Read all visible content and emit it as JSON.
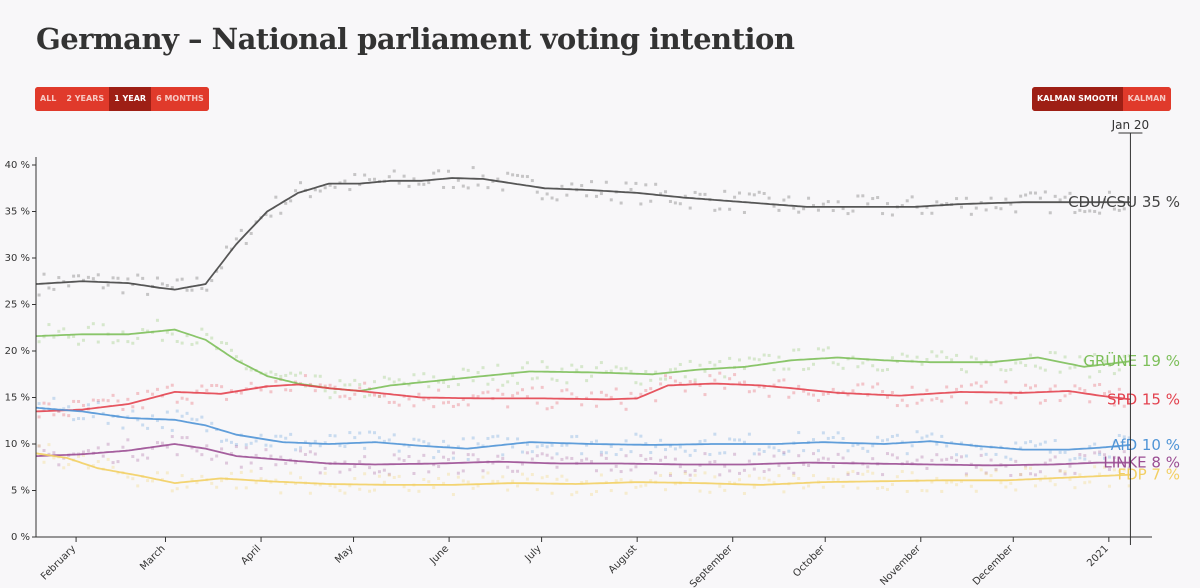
{
  "title": "Germany – National parliament voting intention",
  "range_buttons": [
    {
      "label": "ALL",
      "active": false
    },
    {
      "label": "2 YEARS",
      "active": false
    },
    {
      "label": "1 YEAR",
      "active": true
    },
    {
      "label": "6 MONTHS",
      "active": false
    }
  ],
  "method_buttons": [
    {
      "label": "KALMAN SMOOTH",
      "active": true
    },
    {
      "label": "KALMAN",
      "active": false
    }
  ],
  "chart_data": {
    "type": "line",
    "title": "Germany – National parliament voting intention",
    "xlabel": "",
    "ylabel": "",
    "ylim": [
      0,
      40
    ],
    "x_range_days": [
      0,
      362
    ],
    "yticks": [
      "0 %",
      "5 %",
      "10 %",
      "15 %",
      "20 %",
      "25 %",
      "30 %",
      "35 %",
      "40 %"
    ],
    "ytick_values": [
      0,
      5,
      10,
      15,
      20,
      25,
      30,
      35,
      40
    ],
    "month_ticks": [
      {
        "label": "February",
        "day": 13
      },
      {
        "label": "March",
        "day": 42
      },
      {
        "label": "April",
        "day": 73
      },
      {
        "label": "May",
        "day": 103
      },
      {
        "label": "June",
        "day": 134
      },
      {
        "label": "July",
        "day": 164
      },
      {
        "label": "August",
        "day": 195
      },
      {
        "label": "September",
        "day": 226
      },
      {
        "label": "October",
        "day": 256
      },
      {
        "label": "November",
        "day": 287
      },
      {
        "label": "December",
        "day": 317
      },
      {
        "label": "2021",
        "day": 348
      }
    ],
    "cursor": {
      "label": "Jan 20",
      "day": 355
    },
    "series": [
      {
        "name": "CDU/CSU",
        "label": "CDU/CSU 35 %",
        "color": "#444444",
        "days": [
          0,
          15,
          30,
          40,
          45,
          55,
          65,
          75,
          85,
          95,
          105,
          115,
          125,
          135,
          145,
          155,
          165,
          180,
          195,
          210,
          230,
          250,
          265,
          285,
          300,
          320,
          340,
          355
        ],
        "values": [
          27.2,
          27.5,
          27.3,
          26.8,
          26.6,
          27.2,
          31.5,
          35.0,
          37.0,
          38.0,
          38.0,
          38.3,
          38.3,
          38.6,
          38.5,
          38.0,
          37.5,
          37.3,
          37.0,
          36.5,
          36.0,
          35.5,
          35.5,
          35.5,
          35.8,
          36.0,
          36.0,
          36.0
        ],
        "end_value": 35
      },
      {
        "name": "GRÜNE",
        "label": "GRÜNE 19 %",
        "color": "#7dbf5a",
        "days": [
          0,
          15,
          30,
          45,
          55,
          65,
          75,
          85,
          95,
          105,
          115,
          130,
          145,
          160,
          180,
          200,
          215,
          230,
          245,
          260,
          275,
          290,
          310,
          325,
          340,
          355
        ],
        "values": [
          21.6,
          21.8,
          21.8,
          22.3,
          21.2,
          19.0,
          17.3,
          16.5,
          16.0,
          15.7,
          16.3,
          16.8,
          17.3,
          17.8,
          17.7,
          17.5,
          18.0,
          18.3,
          19.0,
          19.3,
          19.0,
          18.8,
          18.8,
          19.3,
          18.3,
          18.9
        ],
        "end_value": 19
      },
      {
        "name": "SPD",
        "label": "SPD 15 %",
        "color": "#e3424f",
        "days": [
          0,
          15,
          30,
          45,
          60,
          75,
          85,
          95,
          105,
          125,
          145,
          165,
          185,
          195,
          205,
          220,
          235,
          245,
          260,
          280,
          300,
          320,
          335,
          345,
          355
        ],
        "values": [
          13.5,
          13.7,
          14.3,
          15.6,
          15.4,
          16.2,
          16.4,
          16.0,
          15.7,
          15.0,
          14.9,
          14.9,
          14.8,
          14.9,
          16.3,
          16.5,
          16.3,
          16.0,
          15.5,
          15.2,
          15.6,
          15.5,
          15.7,
          15.2,
          14.8
        ],
        "end_value": 15
      },
      {
        "name": "AfD",
        "label": "AfD 10 %",
        "color": "#4f94d6",
        "days": [
          0,
          15,
          30,
          45,
          55,
          65,
          80,
          95,
          110,
          125,
          140,
          160,
          180,
          200,
          220,
          240,
          255,
          275,
          290,
          305,
          320,
          335,
          345,
          355
        ],
        "values": [
          13.9,
          13.5,
          12.8,
          12.6,
          12.0,
          11.0,
          10.2,
          10.0,
          10.2,
          9.8,
          9.5,
          10.2,
          10.0,
          9.9,
          10.0,
          10.0,
          10.2,
          10.0,
          10.3,
          9.8,
          9.4,
          9.4,
          9.6,
          9.9
        ],
        "end_value": 10
      },
      {
        "name": "LINKE",
        "label": "LINKE 8 %",
        "color": "#9b4e93",
        "days": [
          0,
          15,
          30,
          45,
          55,
          65,
          80,
          95,
          110,
          130,
          150,
          170,
          190,
          210,
          230,
          250,
          270,
          290,
          310,
          330,
          345,
          355
        ],
        "values": [
          8.7,
          8.9,
          9.3,
          10.0,
          9.5,
          8.7,
          8.3,
          7.9,
          7.8,
          7.9,
          8.1,
          7.9,
          7.9,
          7.8,
          7.8,
          8.0,
          7.9,
          7.8,
          7.7,
          7.8,
          8.0,
          8.0
        ],
        "end_value": 8
      },
      {
        "name": "FDP",
        "label": "FDP 7 %",
        "color": "#f2cf63",
        "days": [
          0,
          10,
          20,
          35,
          45,
          60,
          75,
          95,
          115,
          135,
          155,
          175,
          195,
          215,
          235,
          255,
          275,
          295,
          315,
          335,
          355
        ],
        "values": [
          9.0,
          8.5,
          7.4,
          6.5,
          5.8,
          6.3,
          6.0,
          5.7,
          5.6,
          5.6,
          5.8,
          5.7,
          5.9,
          5.8,
          5.6,
          5.9,
          6.0,
          6.1,
          6.1,
          6.4,
          6.7
        ],
        "end_value": 7
      }
    ]
  }
}
